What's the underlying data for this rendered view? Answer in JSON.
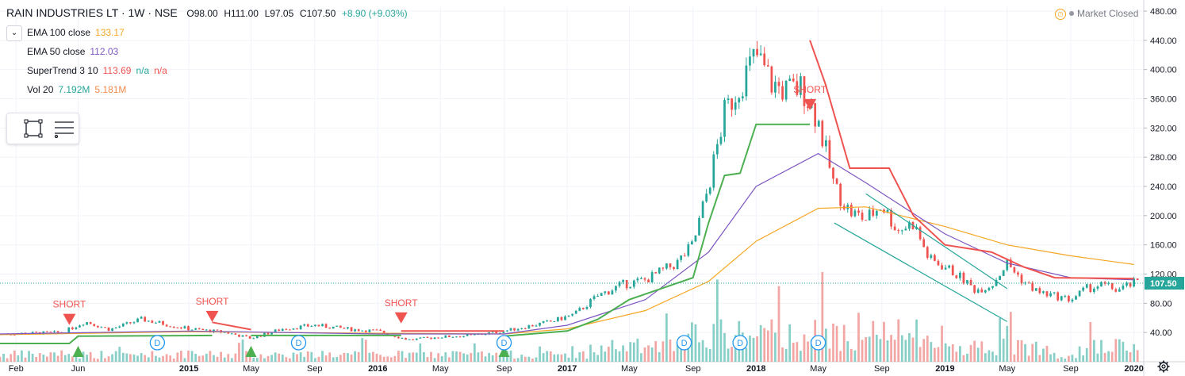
{
  "header": {
    "symbol": "RAIN INDUSTRIES LT · 1W · NSE",
    "open": "O98.00",
    "high": "H111.00",
    "low": "L97.05",
    "close": "C107.50",
    "change": "+8.90 (+9.03%)"
  },
  "indicators": [
    {
      "label": "EMA 100 close",
      "value": "133.17",
      "value2": "",
      "value3": "",
      "color": "#f5a623"
    },
    {
      "label": "EMA 50 close",
      "value": "112.03",
      "value2": "",
      "value3": "",
      "color": "#7e57c2"
    },
    {
      "label": "SuperTrend 3 10",
      "value": "113.69",
      "value2": "n/a",
      "value3": "n/a",
      "color": "#ef5350"
    },
    {
      "label": "Vol 20",
      "value": "7.192M",
      "value2": "5.181M",
      "value3": "",
      "color": "#26a69a"
    }
  ],
  "market_status": "Market Closed",
  "price_label": "107.50",
  "signals": {
    "short": "SHORT",
    "dividend": "D"
  },
  "colors": {
    "up": "#26a69a",
    "down": "#ef5350",
    "ema100": "#f5a623",
    "ema50": "#7e57c2",
    "supertrend_down": "#ef5350",
    "supertrend_up": "#4caf50",
    "channel": "#26a69a",
    "vol_up": "#88cfc8",
    "vol_down": "#f2a7a5"
  },
  "icons": [
    "chevron-down-icon",
    "rectangle-tool-icon",
    "menu-lines-icon",
    "clock-icon",
    "gear-icon",
    "dividend-icon",
    "short-arrow-icon",
    "long-arrow-icon"
  ],
  "chart_data": {
    "type": "candlestick",
    "title": "RAIN INDUSTRIES LT · 1W · NSE",
    "ylim": [
      0,
      480
    ],
    "y_ticks": [
      "40.00",
      "80.00",
      "120.00",
      "160.00",
      "200.00",
      "240.00",
      "280.00",
      "320.00",
      "360.00",
      "400.00",
      "440.00",
      "480.00"
    ],
    "x_ticks": [
      "Feb",
      "Jun",
      "2015",
      "May",
      "Sep",
      "2016",
      "May",
      "Sep",
      "2017",
      "May",
      "Sep",
      "2018",
      "May",
      "Sep",
      "2019",
      "May",
      "Sep",
      "2020"
    ],
    "x_tick_dates": [
      "2014-02-01",
      "2014-06-01",
      "2015-01-01",
      "2015-05-01",
      "2015-09-01",
      "2016-01-01",
      "2016-05-01",
      "2016-09-01",
      "2017-01-01",
      "2017-05-01",
      "2017-09-01",
      "2018-01-01",
      "2018-05-01",
      "2018-09-01",
      "2019-01-01",
      "2019-05-01",
      "2019-09-01",
      "2020-01-01"
    ],
    "price_keypoints": [
      [
        "2014-01-01",
        38
      ],
      [
        "2014-05-01",
        40
      ],
      [
        "2014-06-15",
        55
      ],
      [
        "2014-08-01",
        44
      ],
      [
        "2014-10-01",
        58
      ],
      [
        "2015-01-01",
        45
      ],
      [
        "2015-03-15",
        40
      ],
      [
        "2015-05-01",
        32
      ],
      [
        "2015-07-01",
        45
      ],
      [
        "2015-09-01",
        50
      ],
      [
        "2015-11-15",
        44
      ],
      [
        "2016-01-01",
        42
      ],
      [
        "2016-03-01",
        30
      ],
      [
        "2016-05-01",
        34
      ],
      [
        "2016-07-01",
        36
      ],
      [
        "2016-09-01",
        42
      ],
      [
        "2016-12-01",
        55
      ],
      [
        "2017-01-15",
        65
      ],
      [
        "2017-03-01",
        90
      ],
      [
        "2017-04-15",
        105
      ],
      [
        "2017-06-01",
        112
      ],
      [
        "2017-08-01",
        135
      ],
      [
        "2017-09-01",
        160
      ],
      [
        "2017-10-01",
        240
      ],
      [
        "2017-11-01",
        340
      ],
      [
        "2017-12-01",
        380
      ],
      [
        "2018-01-01",
        420
      ],
      [
        "2018-02-01",
        380
      ],
      [
        "2018-03-01",
        370
      ],
      [
        "2018-04-01",
        375
      ],
      [
        "2018-05-01",
        330
      ],
      [
        "2018-06-01",
        240
      ],
      [
        "2018-07-01",
        205
      ],
      [
        "2018-08-01",
        195
      ],
      [
        "2018-09-01",
        215
      ],
      [
        "2018-10-01",
        180
      ],
      [
        "2018-11-01",
        190
      ],
      [
        "2018-12-01",
        140
      ],
      [
        "2019-01-01",
        130
      ],
      [
        "2019-02-01",
        115
      ],
      [
        "2019-03-01",
        98
      ],
      [
        "2019-04-01",
        105
      ],
      [
        "2019-05-01",
        135
      ],
      [
        "2019-06-01",
        110
      ],
      [
        "2019-07-01",
        95
      ],
      [
        "2019-08-01",
        90
      ],
      [
        "2019-09-01",
        85
      ],
      [
        "2019-10-01",
        100
      ],
      [
        "2019-11-01",
        105
      ],
      [
        "2019-12-01",
        98
      ],
      [
        "2020-01-01",
        107.5
      ]
    ],
    "ema100_keypoints": [
      [
        "2014-01-01",
        37
      ],
      [
        "2015-01-01",
        41
      ],
      [
        "2016-01-01",
        39
      ],
      [
        "2016-09-01",
        38
      ],
      [
        "2017-01-01",
        45
      ],
      [
        "2017-06-01",
        70
      ],
      [
        "2017-10-01",
        110
      ],
      [
        "2018-01-01",
        165
      ],
      [
        "2018-05-01",
        210
      ],
      [
        "2018-08-01",
        212
      ],
      [
        "2019-01-01",
        185
      ],
      [
        "2019-05-01",
        160
      ],
      [
        "2019-09-01",
        145
      ],
      [
        "2020-01-01",
        133.17
      ]
    ],
    "ema50_keypoints": [
      [
        "2014-01-01",
        38
      ],
      [
        "2015-01-01",
        42
      ],
      [
        "2016-01-01",
        38
      ],
      [
        "2016-09-01",
        38
      ],
      [
        "2017-01-01",
        50
      ],
      [
        "2017-06-01",
        85
      ],
      [
        "2017-10-01",
        150
      ],
      [
        "2018-01-01",
        240
      ],
      [
        "2018-05-01",
        285
      ],
      [
        "2018-08-01",
        245
      ],
      [
        "2019-01-01",
        175
      ],
      [
        "2019-05-01",
        135
      ],
      [
        "2019-09-01",
        115
      ],
      [
        "2020-01-01",
        112.03
      ]
    ],
    "supertrend_segments": [
      {
        "trend": "up",
        "points": [
          [
            "2014-01-01",
            25
          ],
          [
            "2014-05-15",
            25
          ],
          [
            "2014-06-01",
            35
          ],
          [
            "2015-02-15",
            36
          ]
        ]
      },
      {
        "trend": "down",
        "points": [
          [
            "2015-02-15",
            54
          ],
          [
            "2015-05-01",
            44
          ]
        ]
      },
      {
        "trend": "up",
        "points": [
          [
            "2015-05-01",
            36
          ],
          [
            "2016-02-15",
            36
          ]
        ]
      },
      {
        "trend": "down",
        "points": [
          [
            "2016-02-15",
            42
          ],
          [
            "2016-09-01",
            42
          ]
        ]
      },
      {
        "trend": "up",
        "points": [
          [
            "2016-09-01",
            35
          ],
          [
            "2017-01-01",
            42
          ],
          [
            "2017-03-01",
            58
          ],
          [
            "2017-05-01",
            85
          ],
          [
            "2017-07-01",
            100
          ],
          [
            "2017-09-01",
            115
          ],
          [
            "2017-10-01",
            190
          ],
          [
            "2017-11-01",
            255
          ],
          [
            "2017-12-01",
            258
          ],
          [
            "2018-01-01",
            325
          ],
          [
            "2018-04-15",
            325
          ]
        ]
      },
      {
        "trend": "down",
        "points": [
          [
            "2018-04-15",
            440
          ],
          [
            "2018-05-15",
            380
          ],
          [
            "2018-07-01",
            265
          ],
          [
            "2018-09-15",
            265
          ],
          [
            "2018-11-01",
            200
          ],
          [
            "2019-01-01",
            160
          ],
          [
            "2019-04-01",
            150
          ],
          [
            "2019-06-01",
            130
          ],
          [
            "2019-08-01",
            115
          ],
          [
            "2020-01-01",
            113.69
          ]
        ]
      }
    ],
    "channel_lines": [
      {
        "from": [
          "2018-06-01",
          190
        ],
        "to": [
          "2019-05-01",
          55
        ]
      },
      {
        "from": [
          "2018-08-01",
          230
        ],
        "to": [
          "2019-05-01",
          100
        ]
      }
    ],
    "short_signals": [
      [
        "2014-05-15",
        33
      ],
      [
        "2015-02-15",
        37
      ],
      [
        "2016-02-15",
        35
      ],
      [
        "2018-04-15",
        327
      ]
    ],
    "long_signals": [
      [
        "2014-06-01"
      ],
      [
        "2015-05-01"
      ],
      [
        "2016-09-01"
      ]
    ],
    "dividends": [
      "2014-11-01",
      "2015-08-01",
      "2016-09-01",
      "2017-08-15",
      "2017-12-01",
      "2018-05-01"
    ],
    "current_price": 107.5
  }
}
